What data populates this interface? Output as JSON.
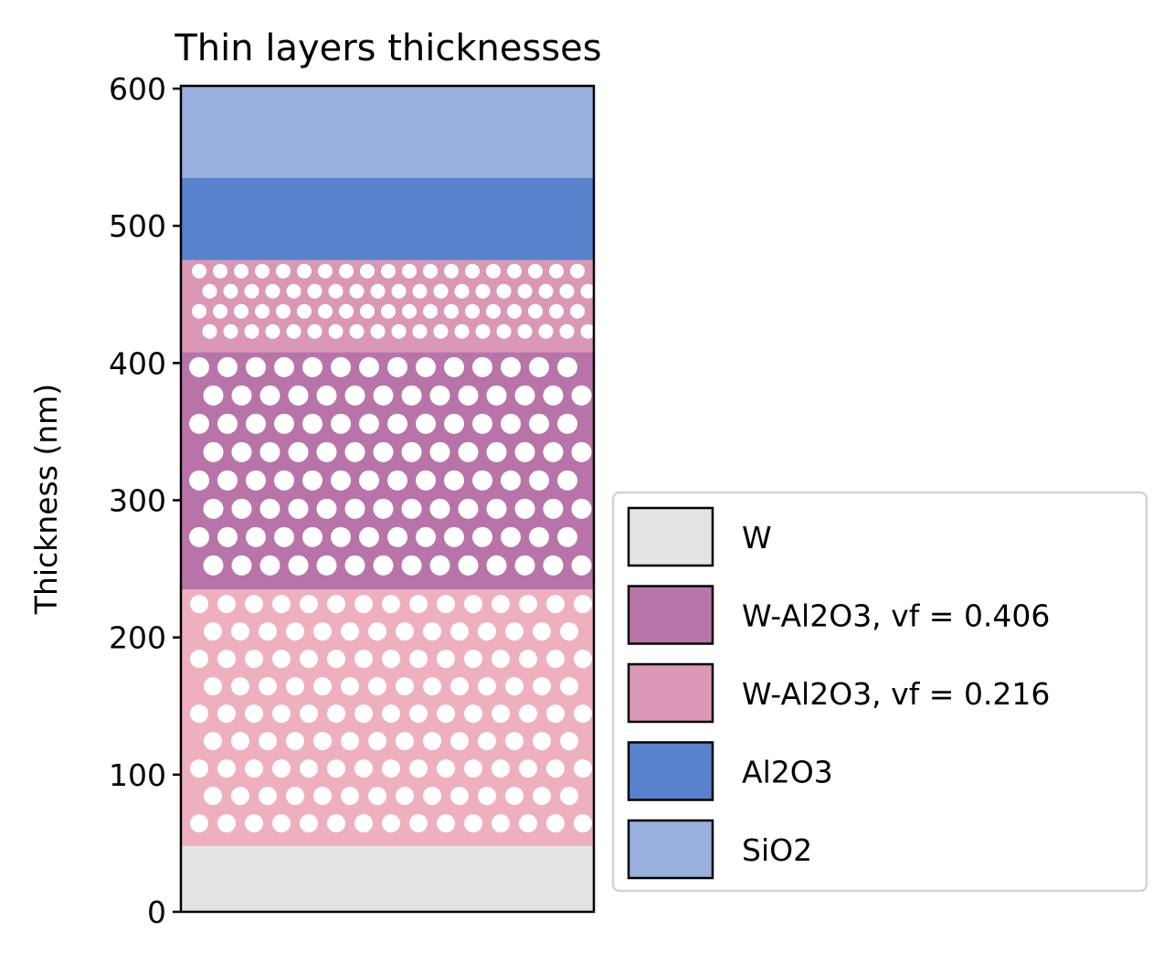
{
  "chart_data": {
    "type": "bar",
    "title": "Thin layers thicknesses",
    "xlabel": "",
    "ylabel": "Thickness (nm)",
    "ylim": [
      0,
      602
    ],
    "yticks": [
      0,
      100,
      200,
      300,
      400,
      500,
      600
    ],
    "grid": false,
    "legend_position": "lower right outside",
    "layers": [
      {
        "name": "W",
        "bottom": 0,
        "thickness": 48,
        "color": "#e3e3e3",
        "pattern": "none"
      },
      {
        "name": "W-Al2O3, vf = 0.216",
        "bottom": 48,
        "thickness": 187,
        "color": "#eeb0bf",
        "pattern": "dots-medium"
      },
      {
        "name": "W-Al2O3, vf = 0.406",
        "bottom": 235,
        "thickness": 173,
        "color": "#b874a9",
        "pattern": "dots-large"
      },
      {
        "name": "W-Al2O3, vf = 0.216",
        "bottom": 408,
        "thickness": 67,
        "color": "#db97b6",
        "pattern": "dots-small"
      },
      {
        "name": "Al2O3",
        "bottom": 475,
        "thickness": 60,
        "color": "#5882cb",
        "pattern": "none"
      },
      {
        "name": "SiO2",
        "bottom": 535,
        "thickness": 67,
        "color": "#99b0de",
        "pattern": "none"
      }
    ],
    "legend": [
      {
        "label": "W",
        "color": "#e3e3e3"
      },
      {
        "label": "W-Al2O3, vf = 0.406",
        "color": "#b874a9"
      },
      {
        "label": "W-Al2O3, vf = 0.216",
        "color": "#db97b6"
      },
      {
        "label": "Al2O3",
        "color": "#5882cb"
      },
      {
        "label": "SiO2",
        "color": "#99b0de"
      }
    ]
  }
}
